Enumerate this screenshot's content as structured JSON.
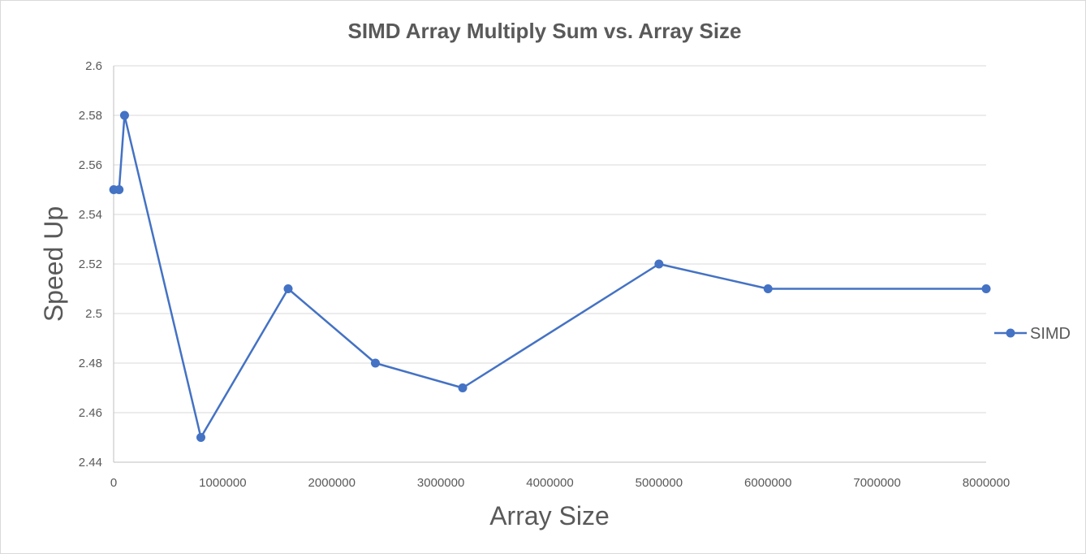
{
  "chart_data": {
    "type": "line",
    "title": "SIMD Array Multiply Sum vs. Array Size",
    "xlabel": "Array Size",
    "ylabel": "Speed Up",
    "xlim": [
      0,
      8000000
    ],
    "ylim": [
      2.44,
      2.6
    ],
    "x_ticks": [
      "0",
      "1000000",
      "2000000",
      "3000000",
      "4000000",
      "5000000",
      "6000000",
      "7000000",
      "8000000"
    ],
    "y_ticks": [
      "2.44",
      "2.46",
      "2.48",
      "2.5",
      "2.52",
      "2.54",
      "2.56",
      "2.58",
      "2.6"
    ],
    "grid": true,
    "legend": "right",
    "series": [
      {
        "name": "SIMD",
        "color": "#4472c4",
        "x": [
          1000,
          50000,
          100000,
          800000,
          1600000,
          2400000,
          3200000,
          5000000,
          6000000,
          8000000
        ],
        "y": [
          2.55,
          2.55,
          2.58,
          2.45,
          2.51,
          2.48,
          2.47,
          2.52,
          2.51,
          2.51
        ]
      }
    ]
  }
}
